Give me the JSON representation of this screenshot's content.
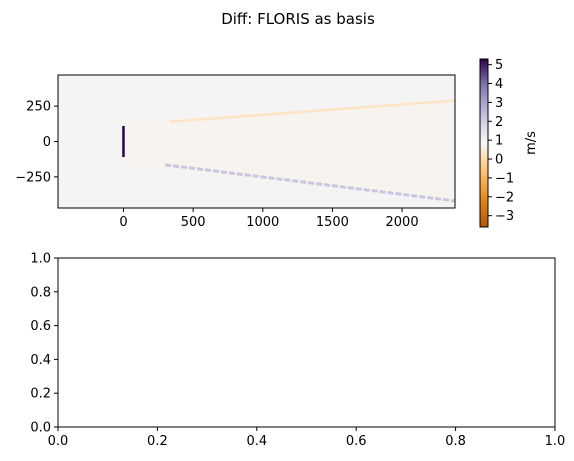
{
  "figure": {
    "title": "Diff: FLORIS as basis"
  },
  "chart_data": [
    {
      "type": "heatmap",
      "title": "",
      "xlabel": "",
      "ylabel": "",
      "xlim": [
        -470,
        2380
      ],
      "ylim": [
        -470,
        470
      ],
      "xticks": [
        0,
        500,
        1000,
        1500,
        2000
      ],
      "yticks": [
        250,
        0,
        -250
      ],
      "xtick_labels": [
        "0",
        "500",
        "1000",
        "1500",
        "2000"
      ],
      "ytick_labels": [
        "250",
        "0",
        "−250"
      ],
      "background_value": 0,
      "features": [
        {
          "name": "rotor",
          "x": 0,
          "y_range": [
            -110,
            110
          ],
          "value": 5.2
        },
        {
          "name": "wake-upper-edge",
          "x_range": [
            330,
            2380
          ],
          "y_range": [
            140,
            290
          ],
          "value": -0.6
        },
        {
          "name": "wake-lower-edge",
          "x_range": [
            300,
            2380
          ],
          "y_range": [
            -165,
            -420
          ],
          "value": 1.1
        },
        {
          "name": "wake-interior",
          "value": -0.15
        }
      ],
      "colorbar": {
        "label": "m/s",
        "range": [
          -3.6,
          5.3
        ],
        "ticks": [
          5,
          4,
          3,
          2,
          1,
          0,
          -1,
          -2,
          -3
        ],
        "tick_labels": [
          "5",
          "4",
          "3",
          "2",
          "1",
          "0",
          "−1",
          "−2",
          "−3"
        ],
        "colormap": "PuOr"
      }
    },
    {
      "type": "line",
      "title": "",
      "xlabel": "",
      "ylabel": "",
      "series": [],
      "xlim": [
        0,
        1
      ],
      "ylim": [
        0,
        1
      ],
      "xticks": [
        0,
        0.2,
        0.4,
        0.6,
        0.8,
        1.0
      ],
      "yticks": [
        0,
        0.2,
        0.4,
        0.6,
        0.8,
        1.0
      ],
      "xtick_labels": [
        "0.0",
        "0.2",
        "0.4",
        "0.6",
        "0.8",
        "1.0"
      ],
      "ytick_labels": [
        "0.0",
        "0.2",
        "0.4",
        "0.6",
        "0.8",
        "1.0"
      ]
    }
  ]
}
